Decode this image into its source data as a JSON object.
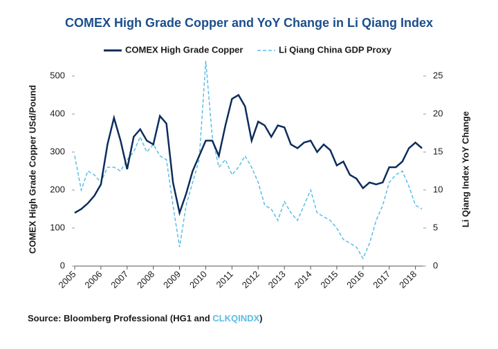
{
  "chart_data": {
    "type": "line",
    "title": "COMEX High Grade Copper and YoY Change in Li Qiang Index",
    "ylabel": "COMEX High Grade Copper USd/Pound",
    "y2label": "Li Qiang Index YoY Change",
    "source": [
      "Source: Bloomberg Professional (HG1 and ",
      "CLKQINDX",
      ")"
    ],
    "source_colors": [
      "#1a1a1a",
      "#5bbce4",
      "#1a1a1a"
    ],
    "x": [
      2005,
      2005.25,
      2005.5,
      2005.75,
      2006,
      2006.25,
      2006.5,
      2006.75,
      2007,
      2007.25,
      2007.5,
      2007.75,
      2008,
      2008.25,
      2008.5,
      2008.75,
      2009,
      2009.25,
      2009.5,
      2009.75,
      2010,
      2010.25,
      2010.5,
      2010.75,
      2011,
      2011.25,
      2011.5,
      2011.75,
      2012,
      2012.25,
      2012.5,
      2012.75,
      2013,
      2013.25,
      2013.5,
      2013.75,
      2014,
      2014.25,
      2014.5,
      2014.75,
      2015,
      2015.25,
      2015.5,
      2015.75,
      2016,
      2016.25,
      2016.5,
      2016.75,
      2017,
      2017.25,
      2017.5,
      2017.75,
      2018,
      2018.25
    ],
    "xlim": [
      2005,
      2018.3
    ],
    "xticks": [
      2005,
      2006,
      2007,
      2008,
      2009,
      2010,
      2011,
      2012,
      2013,
      2014,
      2015,
      2016,
      2017,
      2018
    ],
    "ylim": [
      0,
      540
    ],
    "yticks": [
      0,
      100,
      200,
      300,
      400,
      500
    ],
    "y2lim": [
      0,
      27
    ],
    "y2ticks": [
      0,
      5,
      10,
      15,
      20,
      25
    ],
    "series": [
      {
        "name": "COMEX High Grade Copper",
        "color": "#0b2d5b",
        "dash": false,
        "values": [
          140,
          150,
          165,
          185,
          215,
          320,
          390,
          330,
          255,
          340,
          360,
          330,
          320,
          395,
          375,
          220,
          140,
          190,
          250,
          290,
          330,
          330,
          290,
          370,
          440,
          450,
          420,
          330,
          380,
          370,
          340,
          370,
          365,
          320,
          310,
          325,
          330,
          300,
          320,
          305,
          265,
          275,
          240,
          230,
          205,
          220,
          215,
          220,
          260,
          260,
          275,
          310,
          325,
          310
        ]
      },
      {
        "name": "Li Qiang China GDP Proxy",
        "color": "#5bbce4",
        "dash": true,
        "axis": "y2",
        "values": [
          14.5,
          10,
          12.5,
          12,
          11,
          13,
          13,
          12.5,
          14,
          15,
          17,
          15,
          16,
          14.5,
          14,
          8,
          2.5,
          8,
          11,
          14,
          27,
          17,
          13,
          14,
          12,
          13,
          14.5,
          13,
          11,
          8,
          7.5,
          6,
          8.5,
          7,
          6,
          8,
          10,
          7,
          6.5,
          6,
          5,
          3.5,
          3,
          2.5,
          1,
          3,
          6,
          8,
          11,
          12,
          12.5,
          10.5,
          8,
          7.5
        ]
      }
    ]
  }
}
